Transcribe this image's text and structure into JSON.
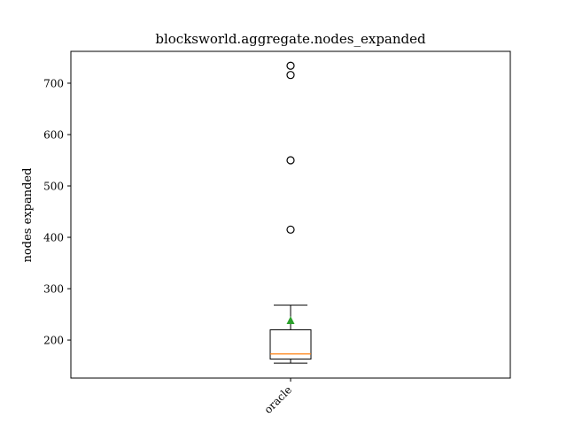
{
  "chart_data": {
    "type": "box",
    "title": "blocksworld.aggregate.nodes_expanded",
    "xlabel": "",
    "ylabel": "nodes expanded",
    "categories": [
      "oracle"
    ],
    "ylim": [
      126,
      762
    ],
    "yticks": [
      200,
      300,
      400,
      500,
      600,
      700
    ],
    "boxes": [
      {
        "name": "oracle",
        "whisker_low": 155,
        "q1": 163,
        "median": 173,
        "q3": 220,
        "whisker_high": 268,
        "mean": 238,
        "outliers": [
          415,
          550,
          716,
          734
        ]
      }
    ],
    "grid": false,
    "colors": {
      "box": "#000000",
      "median": "#ff7f0e",
      "mean": "#2ca02c",
      "outlier_edge": "#000000"
    }
  }
}
